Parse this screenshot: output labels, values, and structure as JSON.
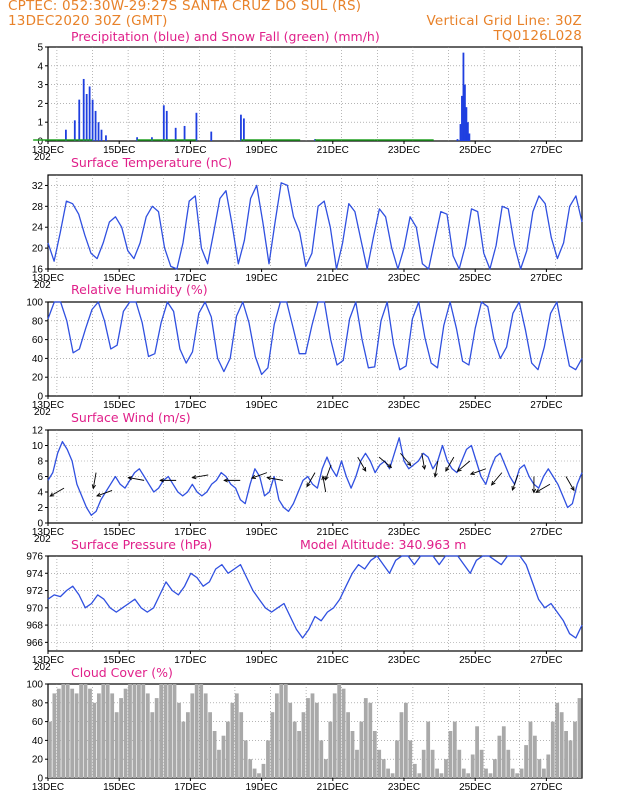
{
  "header": {
    "line1": "CPTEC:   052:30W-29:27S   SANTA CRUZ DO SUL (RS)",
    "line2": "13DEC2020 30Z (GMT)",
    "grid_note": "Vertical Grid Line: 30Z",
    "code": "TQ0126L028"
  },
  "colors": {
    "header": "#e8822a",
    "title": "#e0208a",
    "precip": "#1f3fe0",
    "snow": "#22a022",
    "line": "#3050e0",
    "cloud": "#a9a9a9",
    "wind_arrow": "#000000"
  },
  "chart_data": [
    {
      "id": "precip",
      "type": "bar",
      "title": "Precipitation (blue) and Snow Fall (green) (mm/h)",
      "xlabel": "",
      "ylabel": "",
      "ylim": [
        0,
        5
      ],
      "yticks": [
        "0",
        "1",
        "2",
        "3",
        "4",
        "5"
      ],
      "series": [
        {
          "values_by_hour": [
            [
              12,
              0.6
            ],
            [
              18,
              1.1
            ],
            [
              21,
              2.2
            ],
            [
              24,
              3.3
            ],
            [
              26,
              2.5
            ],
            [
              28,
              2.9
            ],
            [
              30,
              2.2
            ],
            [
              32,
              1.6
            ],
            [
              34,
              1.0
            ],
            [
              36,
              0.6
            ],
            [
              39,
              0.3
            ],
            [
              60,
              0.2
            ],
            [
              70,
              0.2
            ],
            [
              78,
              1.9
            ],
            [
              80,
              1.6
            ],
            [
              86,
              0.7
            ],
            [
              92,
              0.8
            ],
            [
              100,
              1.5
            ],
            [
              110,
              0.5
            ],
            [
              130,
              1.4
            ],
            [
              132,
              1.2
            ],
            [
              180,
              0.1
            ],
            [
              184,
              0.05
            ],
            [
              276,
              0.1
            ],
            [
              278,
              0.9
            ],
            [
              279,
              2.4
            ],
            [
              280,
              4.7
            ],
            [
              281,
              3.0
            ],
            [
              282,
              1.8
            ],
            [
              283,
              1.0
            ],
            [
              284,
              0.4
            ]
          ]
        }
      ],
      "snow": [
        [
          10,
          0.05
        ],
        [
          80,
          0.05
        ],
        [
          150,
          0.05
        ],
        [
          200,
          0.05
        ],
        [
          240,
          0.05
        ]
      ]
    },
    {
      "id": "temp",
      "type": "line",
      "title": "Surface Temperature (nC)",
      "xlabel": "",
      "ylabel": "",
      "ylim": [
        16,
        34
      ],
      "yticks": [
        "16",
        "20",
        "24",
        "28",
        "32"
      ],
      "series": [
        {
          "values": [
            21,
            17.5,
            23,
            29,
            28.5,
            26.5,
            22.5,
            19,
            18,
            21,
            25,
            26,
            24,
            19.5,
            18,
            21,
            26,
            28,
            27,
            20,
            16.5,
            15.5,
            21,
            29,
            30,
            20,
            17,
            23,
            29.5,
            31,
            24.5,
            17,
            21.5,
            29.5,
            32,
            25,
            17,
            25,
            32.5,
            32,
            26,
            23,
            16.5,
            19,
            28,
            29,
            24,
            16,
            21,
            28.5,
            27,
            21.5,
            16,
            22,
            27.5,
            26,
            20,
            15.5,
            20,
            26,
            24,
            17,
            15.5,
            21.5,
            27,
            26.5,
            18.5,
            15,
            20.5,
            27.5,
            27,
            19,
            15,
            20.5,
            28,
            27.5,
            20.5,
            16,
            19.5,
            27,
            30,
            28.5,
            22,
            18,
            21,
            28,
            30,
            25
          ]
        }
      ]
    },
    {
      "id": "rh",
      "type": "line",
      "title": "Relative Humidity (%)",
      "xlabel": "",
      "ylabel": "",
      "ylim": [
        0,
        100
      ],
      "yticks": [
        "0",
        "20",
        "40",
        "60",
        "80",
        "100"
      ],
      "series": [
        {
          "values": [
            82,
            100,
            100,
            80,
            46,
            50,
            72,
            92,
            100,
            80,
            50,
            54,
            90,
            100,
            100,
            78,
            42,
            45,
            78,
            100,
            90,
            50,
            35,
            47,
            88,
            100,
            84,
            40,
            26,
            40,
            85,
            100,
            78,
            42,
            23,
            30,
            76,
            100,
            100,
            73,
            45,
            45,
            75,
            100,
            100,
            60,
            33,
            38,
            82,
            100,
            60,
            30,
            31,
            80,
            100,
            55,
            28,
            32,
            82,
            100,
            62,
            35,
            30,
            75,
            100,
            72,
            37,
            33,
            72,
            100,
            95,
            60,
            40,
            52,
            88,
            100,
            70,
            35,
            28,
            52,
            88,
            100,
            65,
            32,
            28,
            40
          ]
        }
      ]
    },
    {
      "id": "wind",
      "type": "line",
      "title": "Surface Wind (m/s)",
      "xlabel": "",
      "ylabel": "",
      "ylim": [
        0,
        12
      ],
      "yticks": [
        "0",
        "2",
        "4",
        "6",
        "8",
        "10",
        "12"
      ],
      "series": [
        {
          "values": [
            5.5,
            6.5,
            9,
            10.5,
            9.5,
            8,
            5,
            3.5,
            2,
            1,
            1.5,
            3,
            4,
            5,
            6,
            5,
            4.5,
            5.5,
            6.5,
            7,
            6,
            5,
            4,
            4.5,
            5.5,
            6,
            5,
            4,
            3.5,
            4,
            5,
            4,
            3.5,
            4,
            5,
            5.5,
            6.5,
            6,
            5,
            4.5,
            3,
            2.5,
            5,
            7,
            6,
            3.5,
            4,
            6,
            3,
            2,
            1.5,
            2.5,
            4,
            5.5,
            6,
            5,
            4.5,
            7,
            8.5,
            7,
            6,
            8,
            6,
            4.5,
            6,
            8,
            9,
            8,
            6.5,
            7.5,
            8,
            7,
            9,
            11,
            8,
            7,
            7.5,
            8,
            9,
            8.5,
            7,
            8,
            10,
            8,
            7,
            6.5,
            8,
            9.5,
            10,
            8,
            6,
            5,
            7,
            8.5,
            9,
            7.5,
            6,
            5,
            7,
            7.5,
            6,
            5,
            4.5,
            6,
            7,
            6,
            5,
            3.5,
            2,
            2.5,
            5,
            6.5
          ]
        }
      ],
      "barbs_hint": "wind direction arrows along curve"
    },
    {
      "id": "pres",
      "type": "line",
      "title": "Surface Pressure (hPa)",
      "xlabel": "",
      "ylabel": "",
      "ylim": [
        965,
        976
      ],
      "yticks": [
        "966",
        "968",
        "970",
        "972",
        "974",
        "976"
      ],
      "series": [
        {
          "values": [
            971,
            971.5,
            971.3,
            972,
            972.5,
            971.5,
            970,
            970.5,
            971.5,
            971,
            970,
            969.5,
            970,
            970.5,
            971,
            970,
            969.5,
            970,
            971.5,
            973,
            972,
            971.5,
            972.5,
            974,
            973.5,
            972.5,
            973,
            974.5,
            975,
            974,
            974.5,
            975,
            973.5,
            972,
            971,
            970,
            969.5,
            970,
            970.5,
            969,
            967.5,
            966.5,
            967.5,
            969,
            968.5,
            969.5,
            970,
            971,
            972.5,
            974,
            975,
            974.5,
            975.5,
            976,
            975,
            974,
            975.5,
            976.5,
            976,
            975,
            976,
            977,
            976,
            975,
            976,
            977,
            976,
            975,
            974,
            975.5,
            976.5,
            976,
            975.5,
            975,
            976,
            977,
            976,
            975,
            973,
            971,
            970,
            970.5,
            969.5,
            968.5,
            967,
            966.5,
            968
          ]
        }
      ]
    },
    {
      "id": "cloud",
      "type": "bar",
      "title": "Cloud Cover (%)",
      "xlabel": "",
      "ylabel": "",
      "ylim": [
        0,
        100
      ],
      "yticks": [
        "0",
        "20",
        "40",
        "60",
        "80",
        "100"
      ],
      "series": [
        {
          "values": [
            60,
            90,
            95,
            100,
            100,
            95,
            90,
            100,
            100,
            95,
            80,
            90,
            100,
            100,
            90,
            70,
            85,
            95,
            100,
            100,
            100,
            100,
            90,
            70,
            85,
            100,
            100,
            100,
            100,
            80,
            60,
            70,
            90,
            100,
            100,
            90,
            70,
            50,
            30,
            45,
            60,
            80,
            90,
            70,
            40,
            20,
            10,
            5,
            15,
            40,
            70,
            90,
            100,
            100,
            80,
            60,
            50,
            70,
            85,
            90,
            80,
            40,
            20,
            60,
            90,
            100,
            95,
            70,
            50,
            30,
            60,
            85,
            80,
            50,
            30,
            20,
            10,
            5,
            40,
            70,
            80,
            40,
            15,
            5,
            30,
            60,
            30,
            10,
            5,
            20,
            50,
            60,
            30,
            10,
            5,
            25,
            55,
            30,
            10,
            5,
            20,
            45,
            55,
            30,
            10,
            5,
            10,
            35,
            60,
            45,
            20,
            10,
            25,
            60,
            80,
            70,
            50,
            40,
            60,
            85
          ]
        }
      ]
    }
  ],
  "x_axis": {
    "labels": [
      "13DEC",
      "15DEC",
      "17DEC",
      "19DEC",
      "21DEC",
      "23DEC",
      "25DEC",
      "27DEC"
    ],
    "stub": "202"
  },
  "wind_arrows": [
    [
      0.03,
      4.5,
      210
    ],
    [
      0.09,
      6.5,
      260
    ],
    [
      0.12,
      4.2,
      200
    ],
    [
      0.18,
      5.5,
      170
    ],
    [
      0.24,
      5.5,
      180
    ],
    [
      0.3,
      6.2,
      190
    ],
    [
      0.36,
      5.5,
      180
    ],
    [
      0.41,
      6.5,
      200
    ],
    [
      0.44,
      5.5,
      170
    ],
    [
      0.5,
      6.5,
      240
    ],
    [
      0.52,
      4,
      100
    ],
    [
      0.53,
      7.5,
      250
    ],
    [
      0.58,
      8.5,
      300
    ],
    [
      0.62,
      8.5,
      320
    ],
    [
      0.66,
      9,
      310
    ],
    [
      0.7,
      9,
      280
    ],
    [
      0.73,
      8,
      260
    ],
    [
      0.76,
      8.5,
      240
    ],
    [
      0.79,
      8,
      220
    ],
    [
      0.82,
      7,
      200
    ],
    [
      0.85,
      6.5,
      230
    ],
    [
      0.88,
      6.2,
      250
    ],
    [
      0.91,
      6,
      270
    ],
    [
      0.94,
      5,
      210
    ],
    [
      0.97,
      6,
      300
    ]
  ],
  "model_altitude": "Model Altitude: 340.963 m"
}
